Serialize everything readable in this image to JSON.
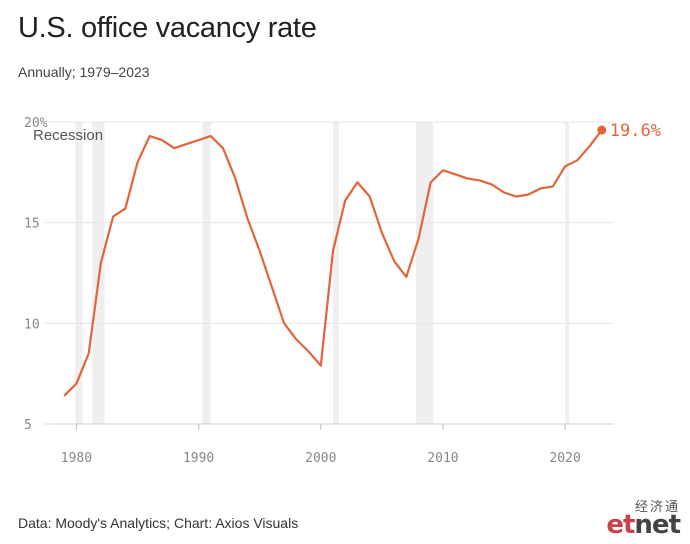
{
  "title": "U.S. office vacancy rate",
  "subtitle": "Annually; 1979–2023",
  "source": "Data: Moody's Analytics; Chart: Axios Visuals",
  "watermark": {
    "cn": "经济通",
    "en_e": "et",
    "en_rest": "net"
  },
  "colors": {
    "line": "#e0653b",
    "recession": "#efefef",
    "grid": "#e6e6e6"
  },
  "chart_data": {
    "type": "line",
    "x": [
      1979,
      1980,
      1981,
      1982,
      1983,
      1984,
      1985,
      1986,
      1987,
      1988,
      1989,
      1990,
      1991,
      1992,
      1993,
      1994,
      1995,
      1996,
      1997,
      1998,
      1999,
      2000,
      2001,
      2002,
      2003,
      2004,
      2005,
      2006,
      2007,
      2008,
      2009,
      2010,
      2011,
      2012,
      2013,
      2014,
      2015,
      2016,
      2017,
      2018,
      2019,
      2020,
      2021,
      2022,
      2023
    ],
    "series": [
      {
        "values": [
          6.4,
          7.0,
          8.5,
          13.0,
          15.3,
          15.7,
          18.0,
          19.3,
          19.1,
          18.7,
          18.9,
          19.1,
          19.3,
          18.7,
          17.2,
          15.2,
          13.6,
          11.8,
          10.0,
          9.2,
          8.6,
          7.9,
          13.6,
          16.1,
          17.0,
          16.3,
          14.5,
          13.1,
          12.3,
          14.2,
          17.0,
          17.6,
          17.4,
          17.2,
          17.1,
          16.9,
          16.5,
          16.3,
          16.4,
          16.7,
          16.8,
          17.8,
          18.1,
          18.8,
          19.6
        ]
      }
    ],
    "end_label": "19.6%",
    "recession_label": "Recession",
    "recessions": [
      [
        1979.9,
        1980.5
      ],
      [
        1981.3,
        1982.3
      ],
      [
        1990.3,
        1991.0
      ],
      [
        2001.0,
        2001.5
      ],
      [
        2007.8,
        2009.2
      ],
      [
        2020.0,
        2020.3
      ]
    ],
    "xlim": [
      1978,
      2024
    ],
    "ylim": [
      5,
      20
    ],
    "x_ticks": [
      1980,
      1990,
      2000,
      2010,
      2020
    ],
    "x_tick_labels": [
      "1980",
      "1990",
      "2000",
      "2010",
      "2020"
    ],
    "y_ticks": [
      5,
      10,
      15,
      20
    ],
    "y_tick_labels": [
      "5",
      "10",
      "15",
      "20%"
    ],
    "grid": true
  }
}
